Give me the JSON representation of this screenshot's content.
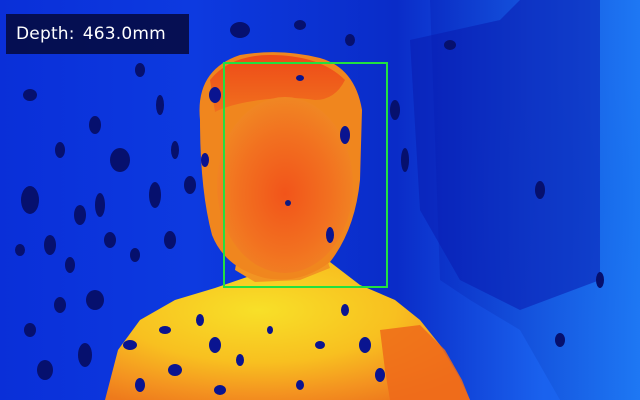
{
  "overlay": {
    "depth_label": "Depth:",
    "depth_value": "463.0mm"
  },
  "colors": {
    "face_box": "#22e040",
    "background_far": "#0a2fd8",
    "background_mid": "#1a62ee",
    "near_orange": "#f06a14",
    "near_yellow": "#f6d020",
    "hole": "#06106e"
  }
}
